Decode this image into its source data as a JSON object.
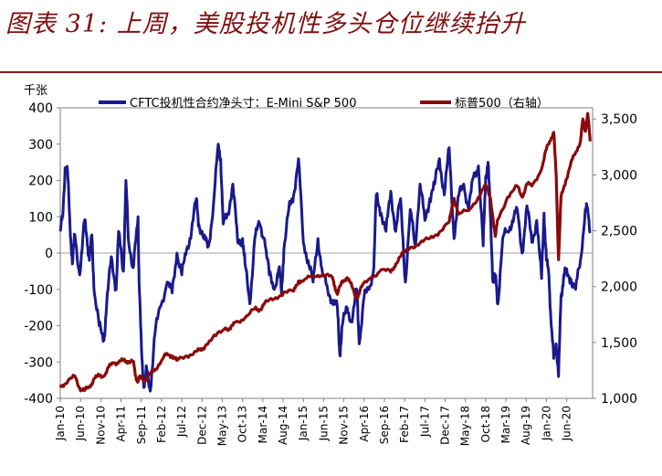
{
  "header": {
    "title": "图表 31: 上周，美股投机性多头仓位继续抬升"
  },
  "chart_data": {
    "type": "line",
    "title": "",
    "y_left_unit": "千张",
    "y_left_lim": [
      -400,
      400
    ],
    "y_left_ticks": [
      -400,
      -300,
      -200,
      -100,
      0,
      100,
      200,
      300,
      400
    ],
    "y_right_lim": [
      1000,
      3600
    ],
    "y_right_ticks": [
      1000,
      1500,
      2000,
      2500,
      3000,
      3500
    ],
    "y_right_tick_labels": [
      "1,000",
      "1,500",
      "2,000",
      "2,500",
      "3,000",
      "3,500"
    ],
    "x_lim": [
      2010.0,
      2020.95
    ],
    "x_ticks": [
      2010.0,
      2010.417,
      2010.833,
      2011.25,
      2011.667,
      2012.083,
      2012.5,
      2012.917,
      2013.333,
      2013.75,
      2014.167,
      2014.583,
      2015.0,
      2015.417,
      2015.833,
      2016.25,
      2016.667,
      2017.083,
      2017.5,
      2017.917,
      2018.333,
      2018.75,
      2019.167,
      2019.583,
      2020.0,
      2020.417
    ],
    "x_tick_labels": [
      "Jan-10",
      "Jun-10",
      "Nov-10",
      "Apr-11",
      "Sep-11",
      "Feb-12",
      "Jul-12",
      "Dec-12",
      "May-13",
      "Oct-13",
      "Mar-14",
      "Aug-14",
      "Jan-15",
      "Jun-15",
      "Nov-15",
      "Apr-16",
      "Sep-16",
      "Feb-17",
      "Jul-17",
      "Dec-17",
      "May-18",
      "Oct-18",
      "Mar-19",
      "Aug-19",
      "Jan-20",
      "Jun-20"
    ],
    "series": [
      {
        "name": "CFTC投机性合约净头寸：E-Mini S&P 500",
        "axis": "left",
        "color": "#1a1a8c",
        "x": [
          2010.0,
          2010.05,
          2010.1,
          2010.15,
          2010.2,
          2010.25,
          2010.3,
          2010.4,
          2010.5,
          2010.55,
          2010.6,
          2010.65,
          2010.7,
          2010.8,
          2010.9,
          2010.95,
          2011.05,
          2011.15,
          2011.2,
          2011.3,
          2011.35,
          2011.4,
          2011.5,
          2011.55,
          2011.6,
          2011.62,
          2011.67,
          2011.72,
          2011.78,
          2011.85,
          2011.95,
          2012.05,
          2012.2,
          2012.3,
          2012.4,
          2012.5,
          2012.6,
          2012.7,
          2012.8,
          2012.85,
          2012.95,
          2013.05,
          2013.15,
          2013.25,
          2013.3,
          2013.35,
          2013.45,
          2013.55,
          2013.65,
          2013.75,
          2013.8,
          2013.9,
          2014.0,
          2014.1,
          2014.2,
          2014.3,
          2014.4,
          2014.5,
          2014.55,
          2014.6,
          2014.7,
          2014.8,
          2014.9,
          2015.0,
          2015.1,
          2015.2,
          2015.3,
          2015.4,
          2015.5,
          2015.6,
          2015.7,
          2015.75,
          2015.8,
          2015.9,
          2016.0,
          2016.1,
          2016.15,
          2016.25,
          2016.35,
          2016.45,
          2016.5,
          2016.6,
          2016.7,
          2016.8,
          2016.9,
          2017.0,
          2017.1,
          2017.2,
          2017.3,
          2017.4,
          2017.5,
          2017.6,
          2017.7,
          2017.8,
          2017.9,
          2018.0,
          2018.1,
          2018.2,
          2018.3,
          2018.4,
          2018.5,
          2018.6,
          2018.7,
          2018.75,
          2018.8,
          2018.85,
          2018.9,
          2018.95,
          2019.0,
          2019.1,
          2019.2,
          2019.3,
          2019.4,
          2019.5,
          2019.6,
          2019.7,
          2019.8,
          2019.9,
          2019.95,
          2020.0,
          2020.05,
          2020.1,
          2020.15,
          2020.2,
          2020.25,
          2020.3,
          2020.35,
          2020.4,
          2020.5,
          2020.6,
          2020.7,
          2020.8,
          2020.85,
          2020.9
        ],
        "y": [
          60,
          100,
          235,
          225,
          80,
          -30,
          50,
          -60,
          90,
          40,
          -20,
          50,
          -110,
          -200,
          -240,
          -150,
          -10,
          -100,
          60,
          -50,
          200,
          40,
          -40,
          30,
          100,
          -80,
          -260,
          -370,
          -320,
          -380,
          -220,
          -150,
          -80,
          -110,
          0,
          -60,
          10,
          60,
          150,
          80,
          40,
          20,
          130,
          300,
          260,
          80,
          110,
          190,
          30,
          40,
          -30,
          -140,
          40,
          80,
          40,
          -60,
          -100,
          -40,
          -110,
          10,
          120,
          160,
          260,
          30,
          -20,
          -80,
          40,
          -60,
          -100,
          -130,
          -150,
          -280,
          -200,
          -150,
          -190,
          -100,
          -250,
          -120,
          -100,
          -40,
          160,
          110,
          60,
          170,
          60,
          150,
          -80,
          120,
          20,
          190,
          90,
          150,
          190,
          260,
          160,
          290,
          40,
          160,
          190,
          120,
          210,
          240,
          20,
          210,
          250,
          100,
          -80,
          -60,
          -140,
          40,
          60,
          90,
          120,
          0,
          130,
          30,
          90,
          -70,
          110,
          -20,
          -60,
          -200,
          -290,
          -250,
          -340,
          -120,
          -70,
          -50,
          -70,
          -100,
          -20,
          120,
          120,
          60
        ],
        "labels": []
      },
      {
        "name": "标普500（右轴）",
        "axis": "right",
        "color": "#8b0a0a",
        "x": [
          2010.0,
          2010.1,
          2010.3,
          2010.4,
          2010.5,
          2010.6,
          2010.7,
          2010.8,
          2010.9,
          2011.0,
          2011.1,
          2011.2,
          2011.3,
          2011.4,
          2011.5,
          2011.55,
          2011.6,
          2011.65,
          2011.75,
          2011.85,
          2011.95,
          2012.1,
          2012.2,
          2012.3,
          2012.4,
          2012.6,
          2012.8,
          2012.9,
          2013.0,
          2013.2,
          2013.4,
          2013.5,
          2013.6,
          2013.8,
          2014.0,
          2014.1,
          2014.2,
          2014.4,
          2014.6,
          2014.8,
          2014.9,
          2015.0,
          2015.2,
          2015.4,
          2015.6,
          2015.65,
          2015.7,
          2015.8,
          2015.9,
          2016.0,
          2016.1,
          2016.2,
          2016.4,
          2016.6,
          2016.8,
          2016.9,
          2017.0,
          2017.2,
          2017.4,
          2017.6,
          2017.8,
          2018.0,
          2018.1,
          2018.2,
          2018.4,
          2018.6,
          2018.75,
          2018.85,
          2018.95,
          2019.0,
          2019.2,
          2019.4,
          2019.5,
          2019.6,
          2019.7,
          2019.9,
          2020.0,
          2020.1,
          2020.15,
          2020.2,
          2020.25,
          2020.3,
          2020.4,
          2020.5,
          2020.6,
          2020.7,
          2020.75,
          2020.8,
          2020.85,
          2020.9
        ],
        "y": [
          1120,
          1130,
          1200,
          1090,
          1070,
          1100,
          1180,
          1200,
          1200,
          1280,
          1320,
          1320,
          1340,
          1330,
          1330,
          1200,
          1150,
          1200,
          1160,
          1220,
          1260,
          1350,
          1400,
          1380,
          1340,
          1380,
          1420,
          1430,
          1480,
          1560,
          1630,
          1620,
          1680,
          1720,
          1800,
          1790,
          1850,
          1890,
          1950,
          1960,
          2050,
          2050,
          2100,
          2110,
          2080,
          2000,
          1930,
          2050,
          2080,
          2000,
          1890,
          2000,
          2080,
          2150,
          2130,
          2200,
          2270,
          2350,
          2390,
          2430,
          2490,
          2580,
          2790,
          2650,
          2680,
          2800,
          2910,
          2790,
          2450,
          2600,
          2800,
          2900,
          2800,
          2920,
          2900,
          3050,
          3230,
          3330,
          3380,
          3000,
          2240,
          2800,
          2950,
          3100,
          3200,
          3300,
          3500,
          3390,
          3550,
          3300
        ],
        "labels": []
      }
    ]
  }
}
